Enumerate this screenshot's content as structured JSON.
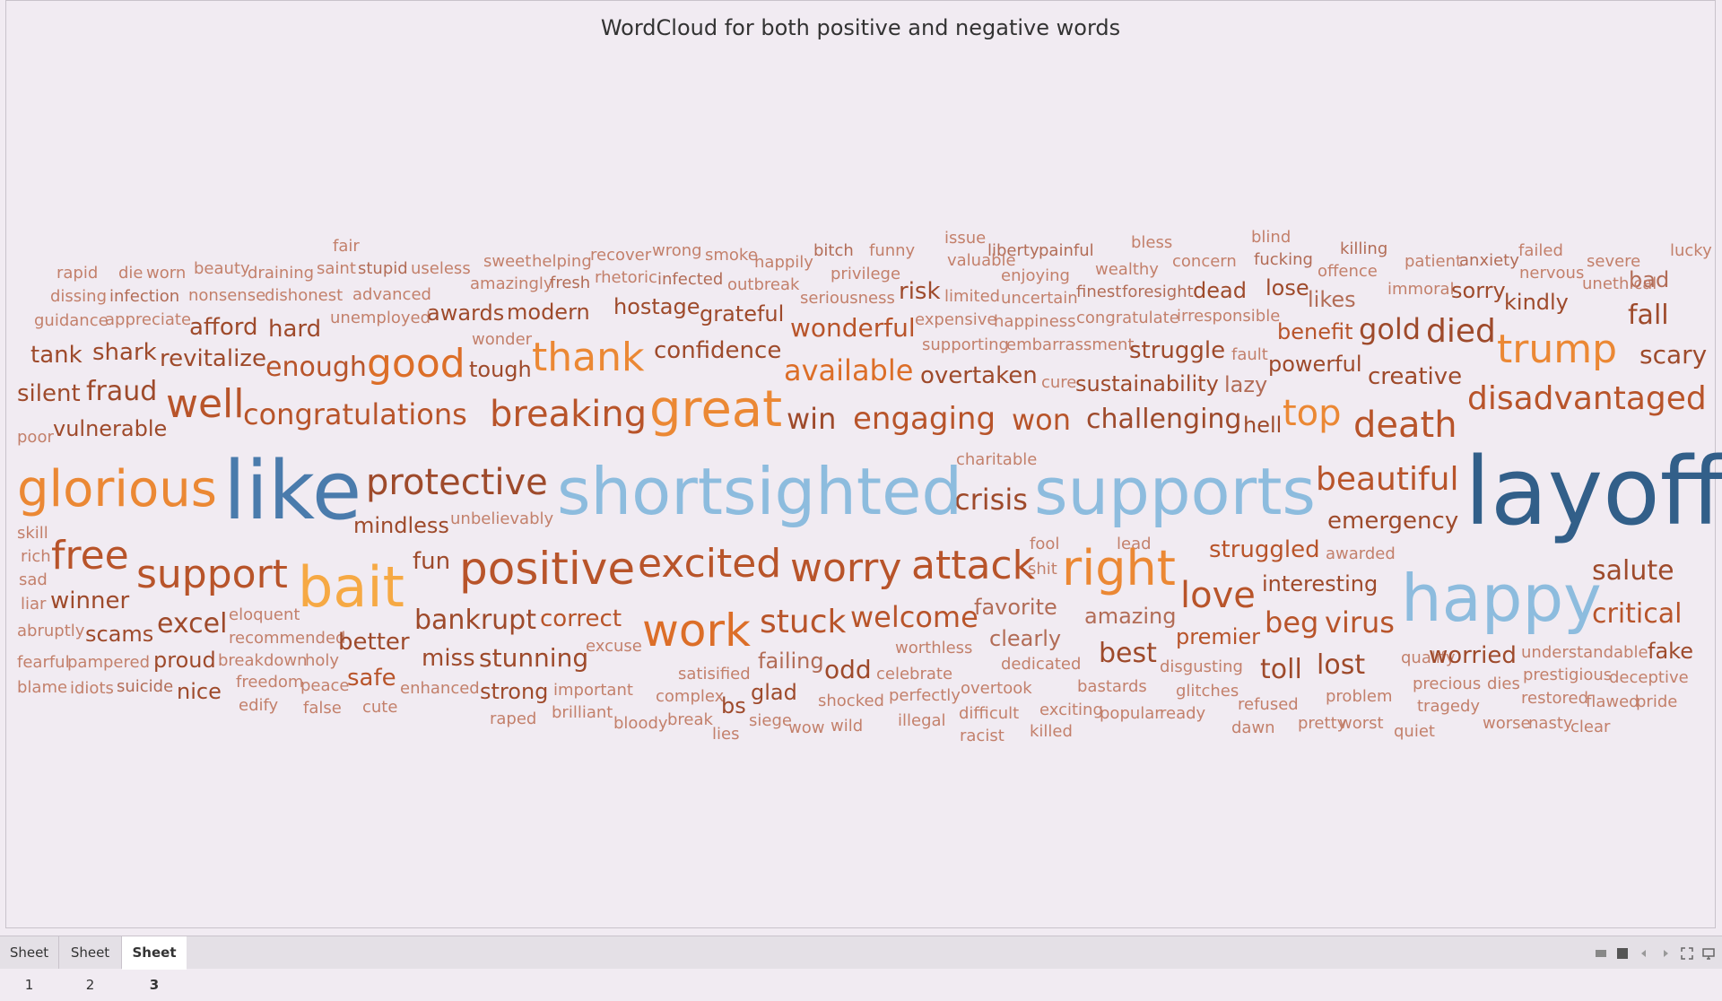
{
  "sheet": {
    "title": "WordCloud for both positive and negative words"
  },
  "tabs": [
    "Sheet 1",
    "Sheet 2",
    "Sheet 3"
  ],
  "active_tab": 2,
  "controls": [
    "layout-icon",
    "presentation-icon",
    "prev-icon",
    "next-icon",
    "fullscreen-icon",
    "device-preview-icon"
  ],
  "colors": {
    "c1": "#325f89",
    "c2": "#4a7bac",
    "c3": "#8dbcde",
    "c4": "#f6a944",
    "c5": "#eb8834",
    "c6": "#dc6e28",
    "c7": "#b8542a",
    "c8": "#9e4a2b",
    "c9": "#b26c56",
    "c10": "#c3806b"
  },
  "words": [
    [
      "fair",
      10,
      370,
      274,
      "c10"
    ],
    [
      "rapid",
      10,
      62,
      304,
      "c10"
    ],
    [
      "die",
      10,
      131,
      304,
      "c10"
    ],
    [
      "worn",
      10,
      162,
      304,
      "c10"
    ],
    [
      "beauty",
      10,
      215,
      299,
      "c10"
    ],
    [
      "draining",
      10,
      275,
      304,
      "c10"
    ],
    [
      "saint",
      10,
      352,
      299,
      "c10"
    ],
    [
      "stupid",
      10,
      398,
      299,
      "c9"
    ],
    [
      "useless",
      10,
      457,
      299,
      "c10"
    ],
    [
      "sweet",
      10,
      538,
      291,
      "c10"
    ],
    [
      "helping",
      10,
      592,
      291,
      "c10"
    ],
    [
      "recover",
      10,
      657,
      284,
      "c10"
    ],
    [
      "wrong",
      10,
      726,
      279,
      "c10"
    ],
    [
      "smoke",
      10,
      785,
      284,
      "c10"
    ],
    [
      "happily",
      10,
      840,
      292,
      "c10"
    ],
    [
      "bitch",
      10,
      906,
      279,
      "c9"
    ],
    [
      "funny",
      10,
      968,
      279,
      "c10"
    ],
    [
      "issue",
      10,
      1052,
      265,
      "c10"
    ],
    [
      "liberty",
      10,
      1100,
      279,
      "c9"
    ],
    [
      "painful",
      10,
      1157,
      279,
      "c9"
    ],
    [
      "bless",
      10,
      1260,
      270,
      "c10"
    ],
    [
      "blind",
      10,
      1394,
      264,
      "c10"
    ],
    [
      "killing",
      10,
      1493,
      277,
      "c9"
    ],
    [
      "failed",
      10,
      1692,
      279,
      "c10"
    ],
    [
      "lucky",
      10,
      1861,
      279,
      "c10"
    ],
    [
      "dissing",
      10,
      55,
      330,
      "c10"
    ],
    [
      "infection",
      10,
      121,
      330,
      "c9"
    ],
    [
      "nonsense",
      10,
      209,
      329,
      "c10"
    ],
    [
      "dishonest",
      10,
      294,
      329,
      "c10"
    ],
    [
      "advanced",
      10,
      392,
      328,
      "c10"
    ],
    [
      "amazingly",
      10,
      523,
      316,
      "c10"
    ],
    [
      "fresh",
      10,
      612,
      315,
      "c9"
    ],
    [
      "rhetoric",
      10,
      662,
      309,
      "c10"
    ],
    [
      "infected",
      10,
      732,
      311,
      "c9"
    ],
    [
      "outbreak",
      10,
      810,
      317,
      "c10"
    ],
    [
      "privilege",
      10,
      925,
      305,
      "c10"
    ],
    [
      "valuable",
      10,
      1055,
      290,
      "c10"
    ],
    [
      "enjoying",
      10,
      1115,
      307,
      "c10"
    ],
    [
      "wealthy",
      10,
      1220,
      300,
      "c10"
    ],
    [
      "concern",
      10,
      1306,
      291,
      "c10"
    ],
    [
      "fucking",
      10,
      1397,
      289,
      "c9"
    ],
    [
      "offence",
      10,
      1468,
      302,
      "c10"
    ],
    [
      "patient",
      10,
      1565,
      291,
      "c10"
    ],
    [
      "anxiety",
      10,
      1626,
      290,
      "c9"
    ],
    [
      "nervous",
      10,
      1693,
      304,
      "c10"
    ],
    [
      "severe",
      10,
      1768,
      291,
      "c10"
    ],
    [
      "bad",
      14,
      1815,
      311,
      "c9"
    ],
    [
      "guidance",
      10,
      37,
      357,
      "c10"
    ],
    [
      "appreciate",
      10,
      116,
      356,
      "c10"
    ],
    [
      "unemployed",
      10,
      367,
      354,
      "c10"
    ],
    [
      "seriousness",
      10,
      891,
      332,
      "c10"
    ],
    [
      "limited",
      10,
      1052,
      330,
      "c10"
    ],
    [
      "uncertain",
      10,
      1115,
      332,
      "c10"
    ],
    [
      "finest",
      10,
      1199,
      325,
      "c9"
    ],
    [
      "foresight",
      10,
      1250,
      325,
      "c9"
    ],
    [
      "immoral",
      10,
      1546,
      322,
      "c10"
    ],
    [
      "unethical",
      10,
      1763,
      316,
      "c10"
    ],
    [
      "wonder",
      10,
      525,
      378,
      "c10"
    ],
    [
      "expensive",
      10,
      1019,
      356,
      "c10"
    ],
    [
      "happiness",
      10,
      1107,
      358,
      "c10"
    ],
    [
      "congratulate",
      10,
      1199,
      354,
      "c10"
    ],
    [
      "irresponsible",
      10,
      1311,
      352,
      "c10"
    ],
    [
      "supporting",
      10,
      1027,
      384,
      "c10"
    ],
    [
      "embarrassment",
      10,
      1121,
      384,
      "c10"
    ],
    [
      "fault",
      10,
      1372,
      395,
      "c10"
    ],
    [
      "charitable",
      10,
      1065,
      512,
      "c10"
    ],
    [
      "poor",
      10,
      18,
      487,
      "c10"
    ],
    [
      "skill",
      10,
      18,
      594,
      "c10"
    ],
    [
      "rich",
      10,
      22,
      620,
      "c10"
    ],
    [
      "sad",
      10,
      20,
      646,
      "c10"
    ],
    [
      "liar",
      10,
      22,
      673,
      "c10"
    ],
    [
      "abruptly",
      10,
      18,
      703,
      "c10"
    ],
    [
      "fearful",
      10,
      18,
      738,
      "c10"
    ],
    [
      "pampered",
      10,
      74,
      738,
      "c10"
    ],
    [
      "blame",
      10,
      18,
      766,
      "c10"
    ],
    [
      "idiots",
      10,
      77,
      767,
      "c10"
    ],
    [
      "suicide",
      10,
      129,
      765,
      "c9"
    ],
    [
      "breakdown",
      10,
      242,
      736,
      "c10"
    ],
    [
      "holy",
      10,
      339,
      736,
      "c10"
    ],
    [
      "freedom",
      10,
      262,
      760,
      "c10"
    ],
    [
      "peace",
      10,
      334,
      764,
      "c10"
    ],
    [
      "edify",
      10,
      265,
      786,
      "c10"
    ],
    [
      "false",
      10,
      337,
      789,
      "c10"
    ],
    [
      "cute",
      10,
      403,
      788,
      "c10"
    ],
    [
      "eloquent",
      10,
      254,
      685,
      "c10"
    ],
    [
      "recommended",
      10,
      254,
      711,
      "c10"
    ],
    [
      "unbelievably",
      10,
      501,
      578,
      "c10"
    ],
    [
      "excuse",
      10,
      652,
      720,
      "c10"
    ],
    [
      "enhanced",
      10,
      445,
      767,
      "c10"
    ],
    [
      "important",
      10,
      616,
      769,
      "c10"
    ],
    [
      "raped",
      10,
      545,
      801,
      "c10"
    ],
    [
      "brilliant",
      10,
      614,
      794,
      "c10"
    ],
    [
      "bloody",
      10,
      683,
      806,
      "c10"
    ],
    [
      "break",
      10,
      743,
      802,
      "c10"
    ],
    [
      "lies",
      10,
      793,
      818,
      "c10"
    ],
    [
      "siege",
      10,
      834,
      803,
      "c10"
    ],
    [
      "wow",
      10,
      878,
      811,
      "c10"
    ],
    [
      "wild",
      10,
      925,
      809,
      "c10"
    ],
    [
      "satisified",
      10,
      755,
      751,
      "c10"
    ],
    [
      "complex",
      10,
      730,
      776,
      "c10"
    ],
    [
      "celebrate",
      10,
      976,
      751,
      "c10"
    ],
    [
      "worthless",
      10,
      997,
      722,
      "c10"
    ],
    [
      "shocked",
      10,
      911,
      781,
      "c10"
    ],
    [
      "perfectly",
      10,
      990,
      775,
      "c10"
    ],
    [
      "illegal",
      10,
      1000,
      803,
      "c10"
    ],
    [
      "overtook",
      10,
      1070,
      767,
      "c10"
    ],
    [
      "difficult",
      10,
      1068,
      795,
      "c10"
    ],
    [
      "racist",
      10,
      1069,
      820,
      "c10"
    ],
    [
      "dedicated",
      10,
      1115,
      740,
      "c10"
    ],
    [
      "bastards",
      10,
      1200,
      765,
      "c10"
    ],
    [
      "exciting",
      10,
      1158,
      791,
      "c10"
    ],
    [
      "popular",
      10,
      1225,
      795,
      "c10"
    ],
    [
      "ready",
      10,
      1292,
      795,
      "c10"
    ],
    [
      "killed",
      10,
      1147,
      815,
      "c10"
    ],
    [
      "disgusting",
      10,
      1292,
      743,
      "c10"
    ],
    [
      "glitches",
      10,
      1310,
      770,
      "c10"
    ],
    [
      "refused",
      10,
      1379,
      785,
      "c10"
    ],
    [
      "dawn",
      10,
      1372,
      811,
      "c10"
    ],
    [
      "pretty",
      10,
      1446,
      806,
      "c10"
    ],
    [
      "worst",
      10,
      1492,
      806,
      "c10"
    ],
    [
      "quiet",
      10,
      1553,
      815,
      "c10"
    ],
    [
      "problem",
      10,
      1477,
      776,
      "c10"
    ],
    [
      "precious",
      10,
      1574,
      762,
      "c10"
    ],
    [
      "dies",
      10,
      1657,
      762,
      "c10"
    ],
    [
      "tragedy",
      10,
      1579,
      787,
      "c10"
    ],
    [
      "worse",
      10,
      1652,
      806,
      "c10"
    ],
    [
      "nasty",
      10,
      1703,
      806,
      "c10"
    ],
    [
      "clear",
      10,
      1750,
      810,
      "c10"
    ],
    [
      "restored",
      10,
      1695,
      778,
      "c10"
    ],
    [
      "flawed",
      10,
      1767,
      782,
      "c10"
    ],
    [
      "pride",
      10,
      1823,
      782,
      "c10"
    ],
    [
      "prestigious",
      10,
      1697,
      752,
      "c10"
    ],
    [
      "deceptive",
      10,
      1793,
      755,
      "c10"
    ],
    [
      "understandable",
      10,
      1695,
      727,
      "c10"
    ],
    [
      "qualify",
      10,
      1561,
      733,
      "c10"
    ],
    [
      "fool",
      10,
      1147,
      606,
      "c10"
    ],
    [
      "shit",
      10,
      1145,
      634,
      "c10"
    ],
    [
      "lead",
      10,
      1244,
      606,
      "c10"
    ],
    [
      "awarded",
      10,
      1477,
      617,
      "c10"
    ],
    [
      "cure",
      10,
      1160,
      426,
      "c10"
    ],
    [
      "tank",
      14,
      33,
      395,
      "c8"
    ],
    [
      "shark",
      14,
      102,
      392,
      "c8"
    ],
    [
      "revitalize",
      14,
      177,
      399,
      "c8"
    ],
    [
      "afford",
      14,
      210,
      364,
      "c8"
    ],
    [
      "hard",
      14,
      298,
      366,
      "c8"
    ],
    [
      "awards",
      14,
      475,
      348,
      "c8"
    ],
    [
      "modern",
      14,
      564,
      347,
      "c8"
    ],
    [
      "hostage",
      14,
      683,
      341,
      "c8"
    ],
    [
      "grateful",
      14,
      779,
      349,
      "c8"
    ],
    [
      "risk",
      14,
      1001,
      324,
      "c8"
    ],
    [
      "dead",
      14,
      1329,
      323,
      "c8"
    ],
    [
      "lose",
      14,
      1410,
      320,
      "c8"
    ],
    [
      "likes",
      14,
      1457,
      333,
      "c9"
    ],
    [
      "sorry",
      14,
      1617,
      323,
      "c8"
    ],
    [
      "kindly",
      14,
      1676,
      336,
      "c8"
    ],
    [
      "benefit",
      14,
      1423,
      369,
      "c7"
    ],
    [
      "powerful",
      14,
      1413,
      405,
      "c8"
    ],
    [
      "creative",
      14,
      1524,
      419,
      "c8"
    ],
    [
      "lazy",
      14,
      1364,
      428,
      "c9"
    ],
    [
      "hell",
      14,
      1385,
      473,
      "c8"
    ],
    [
      "sustainability",
      14,
      1198,
      427,
      "c8"
    ],
    [
      "tough",
      14,
      522,
      411,
      "c8"
    ],
    [
      "vulnerable",
      14,
      58,
      477,
      "c8"
    ],
    [
      "mindless",
      14,
      393,
      585,
      "c8"
    ],
    [
      "emergency",
      14,
      1479,
      580,
      "c8"
    ],
    [
      "struggled",
      14,
      1347,
      612,
      "c7"
    ],
    [
      "interesting",
      14,
      1406,
      650,
      "c8"
    ],
    [
      "salute",
      14,
      1774,
      636,
      "c8"
    ],
    [
      "winner",
      14,
      55,
      669,
      "c8"
    ],
    [
      "scams",
      14,
      94,
      706,
      "c8"
    ],
    [
      "proud",
      14,
      170,
      735,
      "c8"
    ],
    [
      "nice",
      14,
      196,
      770,
      "c8"
    ],
    [
      "fun",
      14,
      459,
      625,
      "c8"
    ],
    [
      "correct",
      14,
      601,
      689,
      "c7"
    ],
    [
      "stunning",
      14,
      533,
      733,
      "c8"
    ],
    [
      "miss",
      14,
      469,
      733,
      "c8"
    ],
    [
      "better",
      14,
      376,
      715,
      "c8"
    ],
    [
      "safe",
      14,
      386,
      755,
      "c7"
    ],
    [
      "strong",
      14,
      534,
      770,
      "c8"
    ],
    [
      "bs",
      14,
      803,
      786,
      "c8"
    ],
    [
      "glad",
      14,
      836,
      771,
      "c8"
    ],
    [
      "failing",
      14,
      844,
      736,
      "c9"
    ],
    [
      "odd",
      14,
      918,
      746,
      "c8"
    ],
    [
      "favorite",
      14,
      1085,
      676,
      "c9"
    ],
    [
      "clearly",
      14,
      1102,
      711,
      "c9"
    ],
    [
      "amazing",
      14,
      1208,
      686,
      "c9"
    ],
    [
      "best",
      14,
      1224,
      728,
      "c8"
    ],
    [
      "premier",
      14,
      1310,
      709,
      "c7"
    ],
    [
      "toll",
      14,
      1404,
      746,
      "c8"
    ],
    [
      "lost",
      14,
      1467,
      741,
      "c8"
    ],
    [
      "worried",
      14,
      1592,
      730,
      "c8"
    ],
    [
      "fake",
      14,
      1836,
      725,
      "c8"
    ],
    [
      "silent",
      14,
      18,
      438,
      "c8"
    ],
    [
      "fraud",
      14,
      95,
      436,
      "c8"
    ],
    [
      "confidence",
      14,
      728,
      390,
      "c8"
    ],
    [
      "wonderful",
      14,
      880,
      365,
      "c7"
    ],
    [
      "available",
      14,
      873,
      412,
      "c6"
    ],
    [
      "overtaken",
      14,
      1025,
      418,
      "c8"
    ],
    [
      "struggle",
      14,
      1258,
      390,
      "c8"
    ],
    [
      "gold",
      14,
      1514,
      366,
      "c8"
    ],
    [
      "died",
      14,
      1589,
      369,
      "c8"
    ],
    [
      "fall",
      14,
      1814,
      351,
      "c8"
    ],
    [
      "scary",
      14,
      1827,
      395,
      "c8"
    ],
    [
      "enough",
      14,
      295,
      409,
      "c7"
    ],
    [
      "congratulations",
      14,
      270,
      461,
      "c7"
    ],
    [
      "win",
      14,
      876,
      466,
      "c8"
    ],
    [
      "engaging",
      14,
      950,
      466,
      "c7"
    ],
    [
      "won",
      14,
      1127,
      467,
      "c7"
    ],
    [
      "challenging",
      14,
      1210,
      467,
      "c8"
    ],
    [
      "disadvantaged",
      14,
      1635,
      444,
      "c7"
    ],
    [
      "crisis",
      14,
      1063,
      556,
      "c8"
    ],
    [
      "protective",
      14,
      407,
      537,
      "c8"
    ],
    [
      "excel",
      14,
      174,
      695,
      "c8"
    ],
    [
      "bankrupt",
      14,
      461,
      691,
      "c8"
    ],
    [
      "stuck",
      14,
      846,
      693,
      "c7"
    ],
    [
      "welcome",
      14,
      947,
      687,
      "c7"
    ],
    [
      "beg",
      14,
      1409,
      693,
      "c7"
    ],
    [
      "virus",
      14,
      1476,
      693,
      "c7"
    ],
    [
      "critical",
      14,
      1774,
      684,
      "c7"
    ],
    [
      "beautiful",
      14,
      1466,
      534,
      "c7"
    ],
    [
      "breaking",
      14,
      545,
      461,
      "c7"
    ],
    [
      "good",
      14,
      408,
      405,
      "c6"
    ],
    [
      "thank",
      14,
      592,
      398,
      "c5"
    ],
    [
      "death",
      14,
      1508,
      473,
      "c7"
    ],
    [
      "top",
      14,
      1429,
      460,
      "c5"
    ],
    [
      "trump",
      14,
      1668,
      389,
      "c5"
    ],
    [
      "well",
      14,
      184,
      450,
      "c7"
    ],
    [
      "free",
      14,
      56,
      619,
      "c7"
    ],
    [
      "support",
      14,
      151,
      640,
      "c7"
    ],
    [
      "positive",
      14,
      511,
      633,
      "c7"
    ],
    [
      "excited",
      14,
      710,
      628,
      "c7"
    ],
    [
      "worry",
      14,
      880,
      633,
      "c7"
    ],
    [
      "attack",
      14,
      1015,
      630,
      "c7"
    ],
    [
      "right",
      14,
      1183,
      633,
      "c5"
    ],
    [
      "love",
      14,
      1315,
      663,
      "c7"
    ],
    [
      "work",
      14,
      715,
      702,
      "c6"
    ],
    [
      "great",
      14,
      723,
      456,
      "c5"
    ],
    [
      "bait",
      14,
      331,
      654,
      "c4"
    ],
    [
      "glorious",
      14,
      18,
      545,
      "c5"
    ],
    [
      "like",
      14,
      248,
      547,
      "c2"
    ],
    [
      "shortsighted",
      14,
      620,
      547,
      "c3"
    ],
    [
      "supports",
      14,
      1152,
      547,
      "c3"
    ],
    [
      "layoff",
      14,
      1632,
      547,
      "c1"
    ],
    [
      "happy",
      14,
      1561,
      666,
      "c3"
    ]
  ],
  "sizes": [
    16,
    20,
    22,
    24,
    28,
    30,
    32,
    36,
    40,
    44,
    50,
    56,
    62,
    72,
    90,
    104
  ]
}
